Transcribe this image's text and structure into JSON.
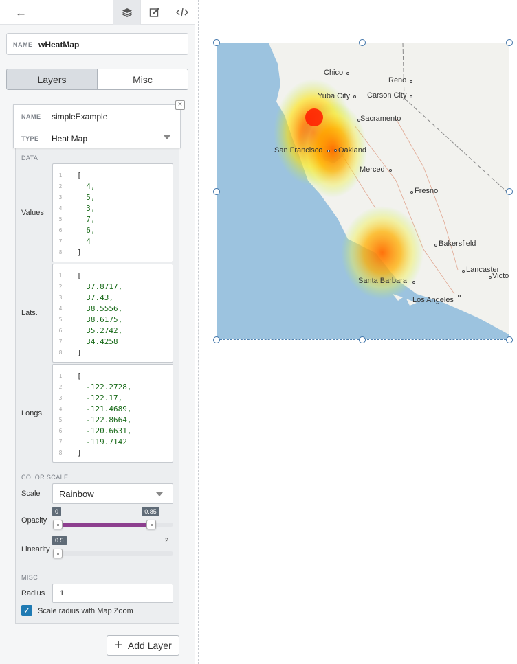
{
  "toolbar": {
    "back_icon": "arrow-left-icon",
    "icons": [
      "layers-icon",
      "edit-icon",
      "code-icon"
    ]
  },
  "widget": {
    "name_label": "NAME",
    "name_value": "wHeatMap"
  },
  "tabs": {
    "layers": "Layers",
    "misc": "Misc"
  },
  "layer": {
    "name_label": "NAME",
    "name_value": "simpleExample",
    "type_label": "TYPE",
    "type_value": "Heat Map",
    "data_section": "DATA",
    "values_label": "Values",
    "lats_label": "Lats.",
    "longs_label": "Longs.",
    "values": [
      "[",
      "  4,",
      "  5,",
      "  3,",
      "  7,",
      "  6,",
      "  4",
      "]"
    ],
    "lats": [
      "[",
      "  37.8717,",
      "  37.43,",
      "  38.5556,",
      "  38.6175,",
      "  35.2742,",
      "  34.4258",
      "]"
    ],
    "longs": [
      "[",
      "  -122.2728,",
      "  -122.17,",
      "  -121.4689,",
      "  -122.8664,",
      "  -120.6631,",
      "  -119.7142",
      "]"
    ],
    "color_section": "COLOR SCALE",
    "scale_label": "Scale",
    "scale_value": "Rainbow",
    "opacity_label": "Opacity",
    "opacity_min": "0",
    "opacity_max": "0.85",
    "opacity_value": 0.85,
    "linearity_label": "Linearity",
    "linearity_min": "0.5",
    "linearity_max": "2",
    "linearity_value": 0.5,
    "misc_section": "MISC",
    "radius_label": "Radius",
    "radius_value": "1",
    "scale_radius_label": "Scale radius with Map Zoom",
    "scale_radius_checked": true
  },
  "add_layer": "Add Layer",
  "map": {
    "cities": [
      "Chico",
      "Reno",
      "Yuba City",
      "Carson City",
      "Sacramento",
      "San Francisco",
      "Oakland",
      "Merced",
      "Fresno",
      "Bakersfield",
      "Lancaster",
      "Victo",
      "Santa Barbara",
      "Los Angeles"
    ]
  },
  "colors": {
    "accent": "#1f7ab3",
    "purple": "#8d3f8f",
    "ocean": "#9cc3df",
    "land": "#f2f2ee"
  }
}
